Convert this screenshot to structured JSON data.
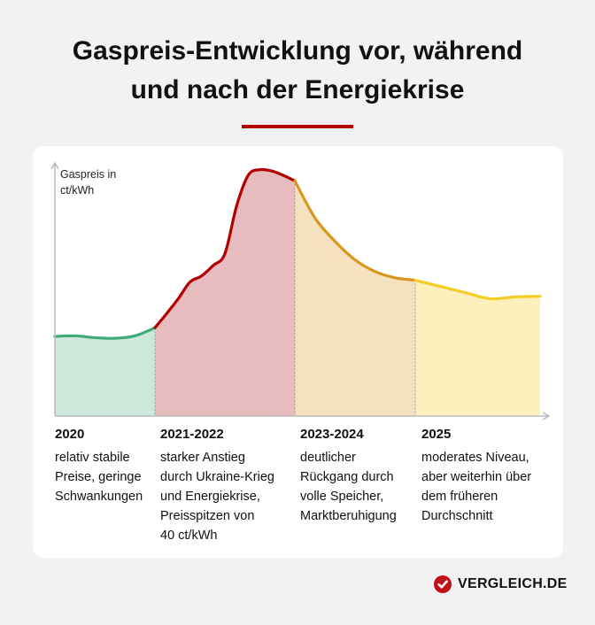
{
  "chart_data": {
    "type": "area",
    "title": "Gaspreis-Entwicklung vor, während und nach der Energiekrise",
    "ylabel": "Gaspreis in ct/kWh",
    "xlabel": "",
    "grid": false,
    "segments": [
      {
        "period": "2020",
        "description": "relativ stabile\nPreise, geringe\nSchwankungen",
        "line_color": "#3daa78",
        "fill_color": "#cce9dc",
        "values": [
          12.9,
          13.0,
          12.7,
          12.6,
          13.0,
          14.3
        ]
      },
      {
        "period": "2021-2022",
        "description": "starker Anstieg\ndurch Ukraine-Krieg\nund Energiekrise,\nPreisspitzen von\n40 ct/kWh",
        "line_color": "#b00000",
        "fill_color": "#e8bcbf",
        "values": [
          14.3,
          16.6,
          19.0,
          21.7,
          22.7,
          24.4,
          26.3,
          34.0,
          39.0,
          39.9,
          39.7,
          39.0,
          38.1
        ]
      },
      {
        "period": "2023-2024",
        "description": "deutlicher\nRückgang durch\nvolle Speicher,\nMarktberuhigung",
        "line_color": "#d9961a",
        "fill_color": "#f4e1bf",
        "values": [
          38.1,
          32.1,
          28.3,
          25.3,
          23.4,
          22.4,
          22.0
        ]
      },
      {
        "period": "2025",
        "description": "moderates Niveau,\naber weiterhin über\ndem früheren\nDurchschnitt",
        "line_color": "#f5cc25",
        "fill_color": "#fdf0bd",
        "values": [
          22.0,
          21.0,
          20.0,
          19.0,
          19.3,
          19.4
        ]
      }
    ],
    "ylim": [
      0,
      40
    ]
  },
  "title_line1": "Gaspreis-Entwicklung vor, während",
  "title_line2": "und nach der Energiekrise",
  "ylabel_line1": "Gaspreis in",
  "ylabel_line2": "ct/kWh",
  "brand": {
    "name": "VERGLEICH.DE",
    "color": "#c0101a",
    "icon": "check-circle-icon"
  },
  "colors": {
    "accent": "#b00000",
    "background": "#f2f2f2"
  }
}
